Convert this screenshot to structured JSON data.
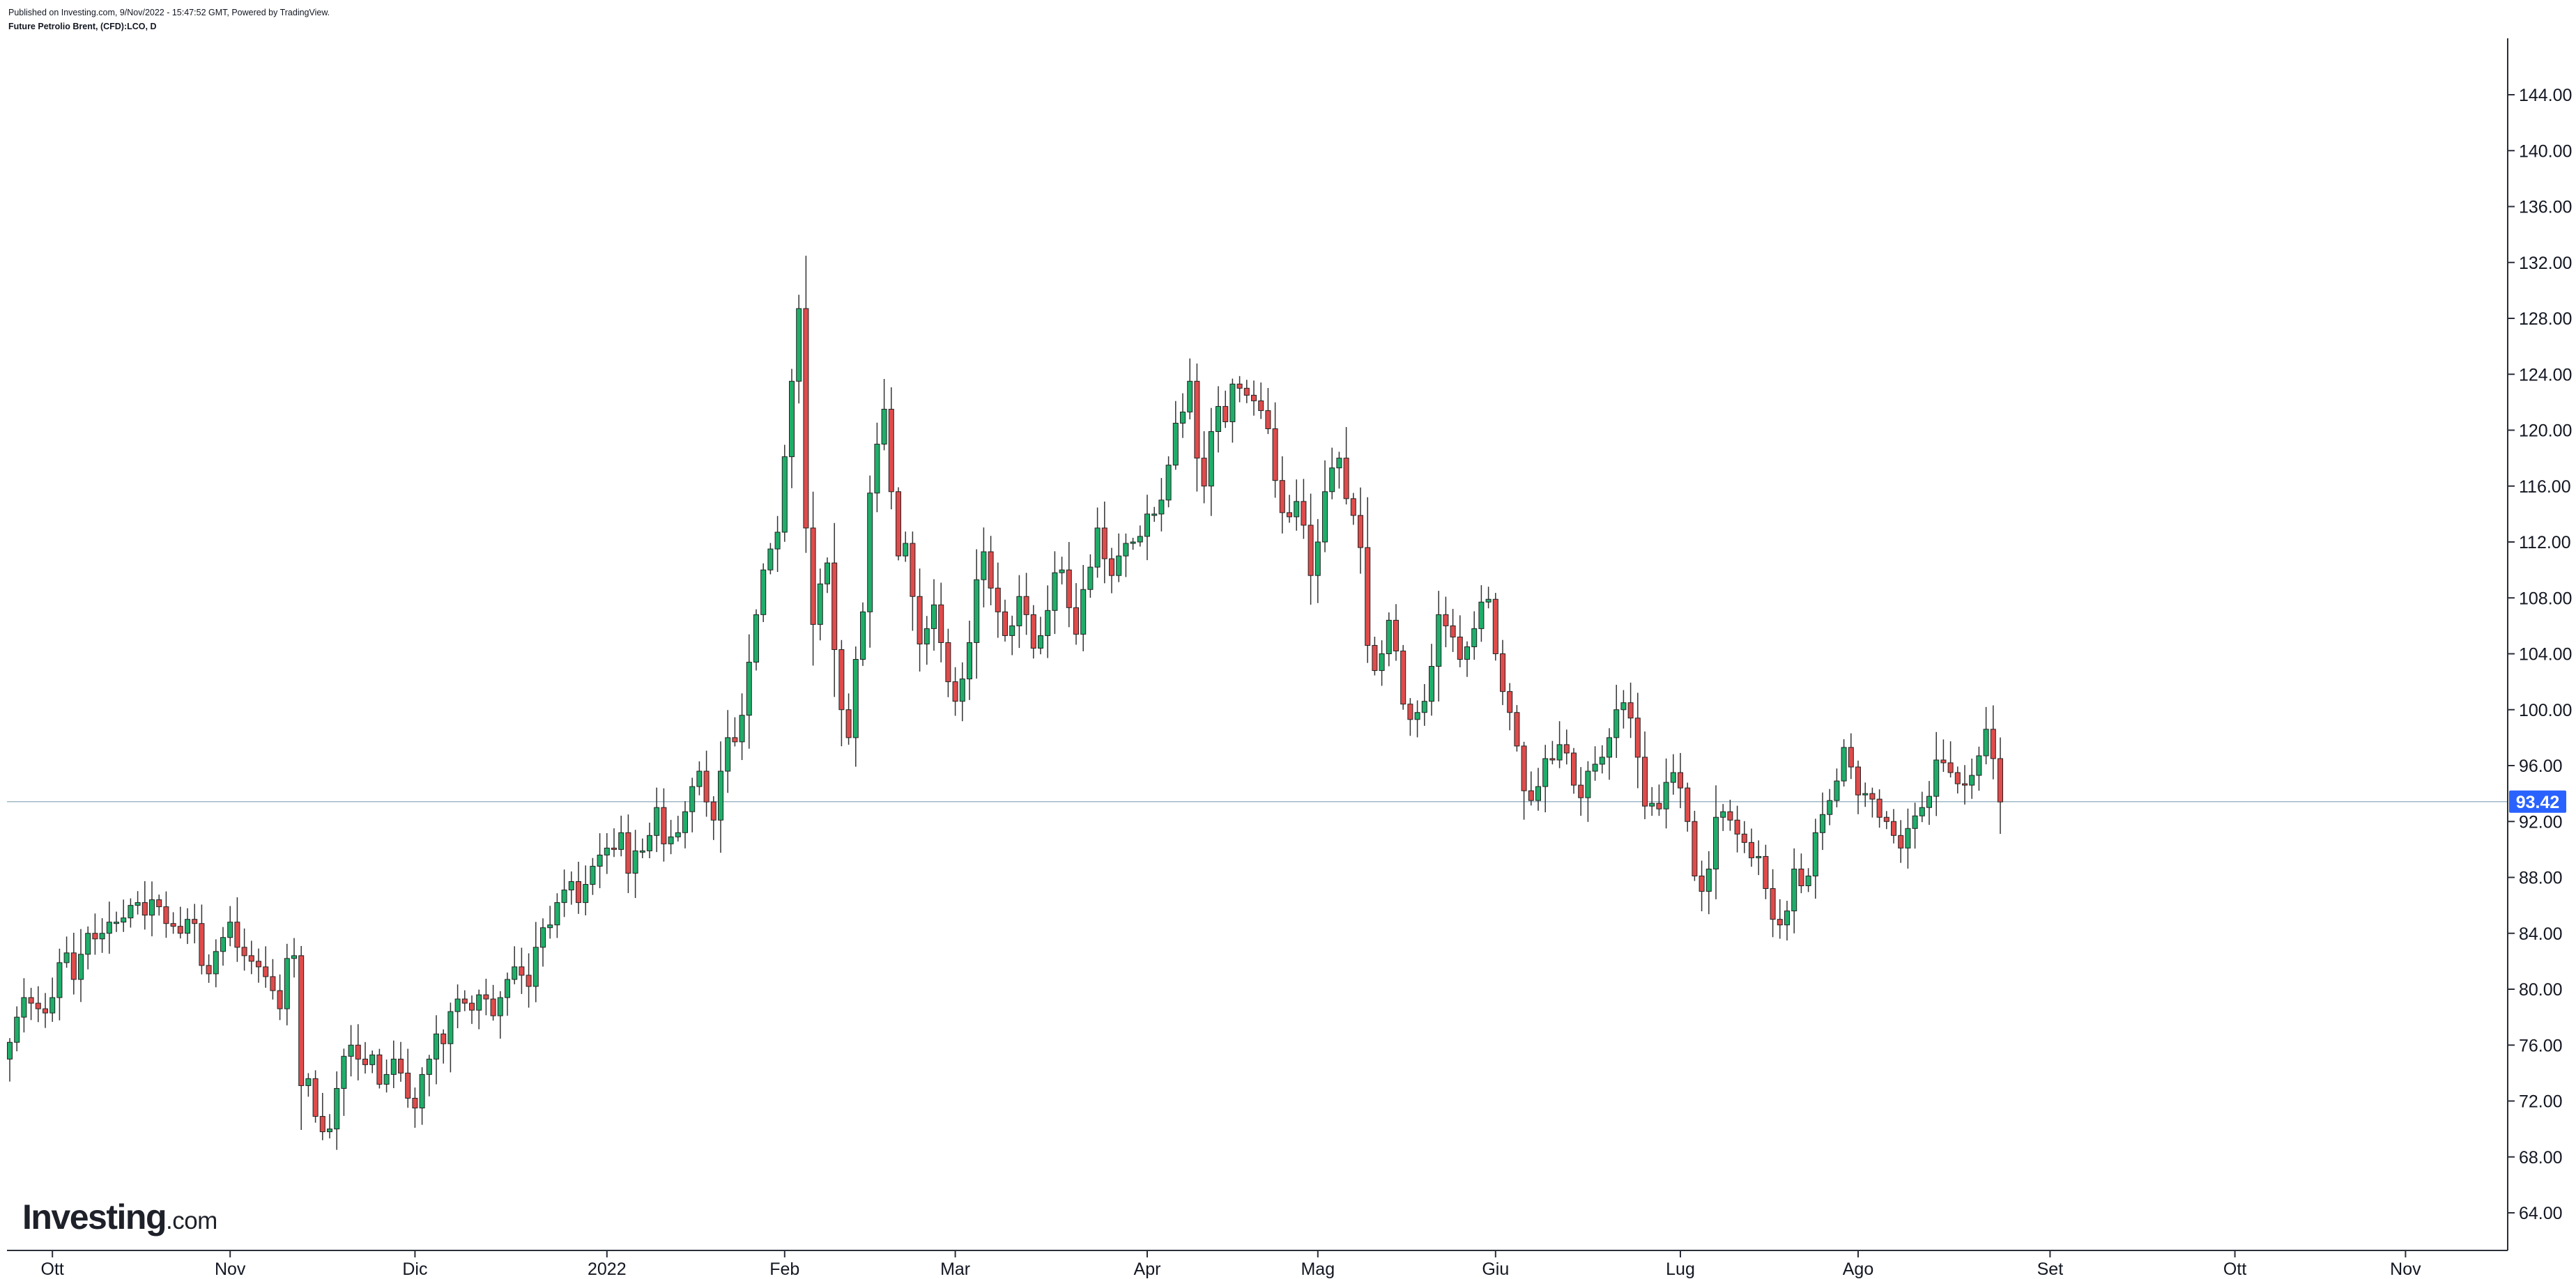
{
  "header": {
    "published": "Published on Investing.com, 9/Nov/2022 - 15:47:52 GMT, Powered by TradingView.",
    "symbol": "Future Petrolio Brent, (CFD):LCO, D"
  },
  "logo": {
    "main": "Investing",
    "suffix": ".com"
  },
  "colors": {
    "up": "#26a269",
    "up_fill": "#1fae6a",
    "down": "#e04b4b",
    "last_price_bg": "#2962ff",
    "wick": "#333333"
  },
  "chart_data": {
    "type": "candlestick",
    "ylim": [
      62,
      147
    ],
    "yticks": [
      "64.00",
      "68.00",
      "72.00",
      "76.00",
      "80.00",
      "84.00",
      "88.00",
      "92.00",
      "96.00",
      "100.00",
      "104.00",
      "108.00",
      "112.00",
      "116.00",
      "120.00",
      "124.00",
      "128.00",
      "132.00",
      "136.00",
      "140.00",
      "144.00"
    ],
    "x_labels": [
      {
        "label": "Ott",
        "index": 6
      },
      {
        "label": "Nov",
        "index": 31
      },
      {
        "label": "Dic",
        "index": 57
      },
      {
        "label": "2022",
        "index": 84
      },
      {
        "label": "Feb",
        "index": 109
      },
      {
        "label": "Mar",
        "index": 133
      },
      {
        "label": "Apr",
        "index": 160
      },
      {
        "label": "Mag",
        "index": 184
      },
      {
        "label": "Giu",
        "index": 209
      },
      {
        "label": "Lug",
        "index": 235
      },
      {
        "label": "Ago",
        "index": 260
      },
      {
        "label": "Set",
        "index": 287
      },
      {
        "label": "Ott",
        "index": 313
      },
      {
        "label": "Nov",
        "index": 337
      }
    ],
    "last_price": "93.42",
    "closes": [
      76.2,
      78.0,
      79.4,
      79.0,
      78.6,
      78.3,
      79.4,
      81.9,
      82.6,
      80.7,
      82.5,
      84.0,
      83.6,
      84.0,
      84.8,
      84.8,
      85.1,
      86.0,
      86.2,
      85.3,
      86.4,
      85.9,
      84.7,
      84.5,
      84.0,
      85.0,
      84.7,
      81.7,
      81.1,
      82.7,
      83.7,
      84.8,
      83.0,
      82.4,
      82.0,
      81.6,
      80.9,
      79.9,
      78.6,
      82.2,
      82.4,
      73.1,
      73.6,
      70.9,
      69.8,
      70.0,
      72.9,
      75.2,
      76.0,
      75.0,
      74.6,
      75.3,
      73.2,
      73.9,
      75.0,
      74.0,
      72.2,
      71.5,
      73.9,
      75.0,
      76.8,
      76.1,
      78.4,
      79.3,
      79.0,
      78.5,
      79.6,
      79.3,
      78.1,
      79.4,
      80.7,
      81.6,
      81.0,
      80.2,
      83.0,
      84.4,
      84.6,
      86.2,
      87.1,
      87.7,
      86.2,
      87.5,
      88.8,
      89.6,
      90.1,
      90.0,
      91.2,
      88.3,
      89.9,
      89.9,
      91.0,
      93.0,
      90.4,
      90.9,
      91.2,
      92.7,
      94.5,
      95.6,
      93.4,
      92.1,
      95.6,
      98.0,
      97.7,
      99.6,
      103.4,
      106.8,
      110.0,
      111.5,
      112.7,
      118.1,
      123.5,
      128.7,
      113.0,
      106.1,
      109.0,
      110.5,
      104.3,
      100.0,
      98.0,
      103.6,
      107.0,
      115.5,
      119.0,
      121.5,
      115.6,
      111.0,
      111.9,
      108.1,
      104.7,
      105.8,
      107.5,
      104.8,
      102.0,
      100.6,
      102.2,
      104.8,
      109.3,
      111.3,
      108.7,
      107.0,
      105.3,
      106.0,
      108.1,
      106.8,
      104.4,
      105.3,
      107.1,
      109.8,
      110.0,
      107.3,
      105.4,
      108.6,
      110.2,
      113.0,
      110.8,
      109.6,
      111.0,
      111.9,
      112.0,
      112.4,
      114.0,
      114.0,
      115.0,
      117.5,
      120.5,
      121.3,
      123.5,
      118.0,
      116.0,
      119.9,
      121.7,
      120.6,
      123.3,
      123.0,
      122.5,
      122.1,
      121.4,
      120.1,
      116.4,
      114.1,
      113.8,
      114.9,
      113.2,
      109.6,
      112.0,
      115.6,
      117.3,
      118.0,
      115.1,
      113.9,
      111.6,
      104.6,
      102.8,
      104.0,
      106.4,
      104.2,
      100.4,
      99.3,
      99.8,
      100.6,
      103.1,
      106.8,
      106.0,
      105.2,
      103.6,
      104.5,
      105.8,
      107.7,
      107.9,
      104.0,
      101.3,
      99.8,
      97.4,
      94.2,
      93.5,
      94.5,
      96.5,
      96.4,
      97.5,
      96.9,
      94.6,
      93.7,
      95.6,
      96.1,
      96.6,
      98.0,
      100.0,
      100.5,
      99.4,
      96.6,
      93.1,
      93.3,
      92.9,
      94.8,
      95.5,
      94.4,
      92.0,
      88.1,
      87.0,
      88.6,
      92.3,
      92.7,
      92.1,
      91.1,
      90.5,
      89.4,
      89.5,
      87.2,
      85.0,
      84.6,
      85.6,
      88.6,
      87.4,
      88.1,
      91.2,
      92.5,
      93.5,
      94.9,
      97.3,
      95.9,
      93.9,
      94.0,
      93.6,
      92.3,
      92.0,
      91.0,
      90.1,
      91.5,
      92.4,
      93.0,
      93.8,
      96.4,
      96.2,
      95.5,
      94.7,
      94.6,
      95.3,
      96.7,
      98.6,
      96.5,
      93.4
    ]
  }
}
